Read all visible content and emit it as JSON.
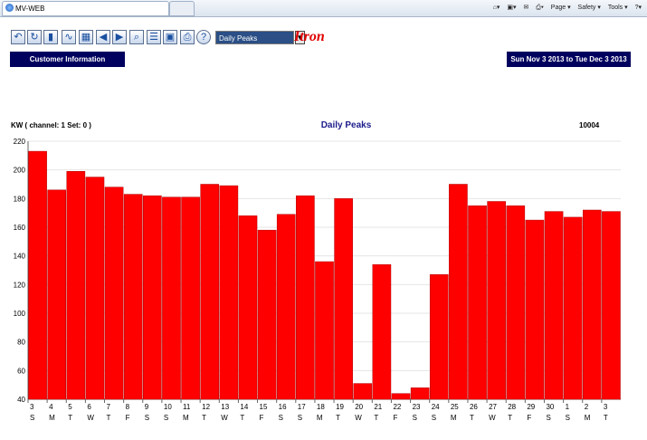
{
  "browser": {
    "tab_title": "MV-WEB",
    "commands": [
      "Page ▾",
      "Safety ▾",
      "Tools ▾"
    ]
  },
  "toolbar": {
    "icons": [
      "undo-icon",
      "refresh-icon",
      "bar-chart-icon",
      "line-chart-icon",
      "grid-icon",
      "back-arrow-icon",
      "forward-arrow-icon",
      "zoom-icon",
      "report-icon",
      "save-icon",
      "print-icon",
      "help-icon"
    ],
    "selected_profile": "Daily Peaks",
    "logo": "Itron"
  },
  "header": {
    "customer_info": "Customer Information",
    "date_range": "Sun Nov 3 2013 to Tue Dec 3 2013"
  },
  "chart_header": {
    "ylabel": "KW ( channel: 1   Set: 0 )",
    "title": "Daily Peaks",
    "meter_id": "10004"
  },
  "chart_data": {
    "type": "bar",
    "title": "Daily Peaks",
    "ylabel": "KW ( channel: 1   Set: 0 )",
    "ylim": [
      40,
      220
    ],
    "yticks": [
      40,
      60,
      80,
      100,
      120,
      140,
      160,
      180,
      200,
      220
    ],
    "grid": true,
    "bar_color": "#ff0000",
    "categories": [
      "3",
      "4",
      "5",
      "6",
      "7",
      "8",
      "9",
      "10",
      "11",
      "12",
      "13",
      "14",
      "15",
      "16",
      "17",
      "18",
      "19",
      "20",
      "21",
      "22",
      "23",
      "24",
      "25",
      "26",
      "27",
      "28",
      "29",
      "30",
      "1",
      "2",
      "3"
    ],
    "weekdays": [
      "S",
      "M",
      "T",
      "W",
      "T",
      "F",
      "S",
      "S",
      "M",
      "T",
      "W",
      "T",
      "F",
      "S",
      "S",
      "M",
      "T",
      "W",
      "T",
      "F",
      "S",
      "S",
      "M",
      "T",
      "W",
      "T",
      "F",
      "S",
      "S",
      "M",
      "T"
    ],
    "values": [
      213,
      186,
      199,
      195,
      188,
      183,
      182,
      181,
      181,
      190,
      189,
      168,
      158,
      169,
      182,
      136,
      180,
      51,
      134,
      44,
      48,
      127,
      190,
      175,
      178,
      175,
      165,
      171,
      167,
      172,
      171
    ]
  }
}
